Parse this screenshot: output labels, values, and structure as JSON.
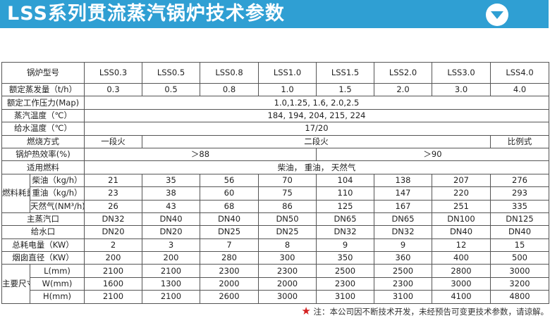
{
  "header": {
    "title": "LSS系列贯流蒸汽锅炉技术参数",
    "icon": "chevron-down-circle-icon",
    "color": "#2f9fd3"
  },
  "table": {
    "model_label": "锅炉型号",
    "models": [
      "LSS0.3",
      "LSS0.5",
      "LSS0.8",
      "LSS1.0",
      "LSS1.5",
      "LSS2.0",
      "LSS3.0",
      "LSS4.0"
    ],
    "rows": [
      {
        "label": "额定蒸发量（t/h）",
        "cells": [
          {
            "v": "0.3"
          },
          {
            "v": "0.5"
          },
          {
            "v": "0.8"
          },
          {
            "v": "1.0"
          },
          {
            "v": "1.5"
          },
          {
            "v": "2.0"
          },
          {
            "v": "3.0"
          },
          {
            "v": "4.0"
          }
        ]
      },
      {
        "label": "额定工作压力(Map)",
        "cells": [
          {
            "v": "1.0,1.25, 1.6, 2.0,2.5",
            "span": 8
          }
        ]
      },
      {
        "label": "蒸汽温度（℃）",
        "cells": [
          {
            "v": "184, 194, 204, 215, 224",
            "span": 8
          }
        ]
      },
      {
        "label": "给水温度（℃）",
        "cells": [
          {
            "v": "17/20",
            "span": 8
          }
        ]
      },
      {
        "label": "燃烧方式",
        "cells": [
          {
            "v": "一段火"
          },
          {
            "v": "二段火",
            "span": 6
          },
          {
            "v": "比例式"
          }
        ]
      },
      {
        "label": "锅炉热效率(%)",
        "cells": [
          {
            "v": "＞88",
            "span": 4
          },
          {
            "v": "＞90",
            "span": 4
          }
        ]
      },
      {
        "label": "适用燃料",
        "cells": [
          {
            "v": "柴油， 重油， 天然气",
            "span": 8
          }
        ]
      },
      {
        "group": "燃料耗量",
        "label": "柴油（kg/h）",
        "cells": [
          {
            "v": "21"
          },
          {
            "v": "35"
          },
          {
            "v": "56"
          },
          {
            "v": "70"
          },
          {
            "v": "104"
          },
          {
            "v": "138"
          },
          {
            "v": "207"
          },
          {
            "v": "276"
          }
        ]
      },
      {
        "group": "燃料耗量",
        "label": "重油（kg/h）",
        "cells": [
          {
            "v": "23"
          },
          {
            "v": "38"
          },
          {
            "v": "60"
          },
          {
            "v": "75"
          },
          {
            "v": "110"
          },
          {
            "v": "147"
          },
          {
            "v": "220"
          },
          {
            "v": "293"
          }
        ]
      },
      {
        "group": "燃料耗量",
        "label": "天然气(NM³/h)",
        "cells": [
          {
            "v": "26"
          },
          {
            "v": "43"
          },
          {
            "v": "68"
          },
          {
            "v": "86"
          },
          {
            "v": "125"
          },
          {
            "v": "167"
          },
          {
            "v": "251"
          },
          {
            "v": "335"
          }
        ]
      },
      {
        "label": "主蒸汽口",
        "cells": [
          {
            "v": "DN32"
          },
          {
            "v": "DN40"
          },
          {
            "v": "DN40"
          },
          {
            "v": "DN50"
          },
          {
            "v": "DN65"
          },
          {
            "v": "DN65"
          },
          {
            "v": "DN100"
          },
          {
            "v": "DN125"
          }
        ]
      },
      {
        "label": "给水口",
        "cells": [
          {
            "v": "DN20"
          },
          {
            "v": "DN20"
          },
          {
            "v": "DN25"
          },
          {
            "v": "DN25"
          },
          {
            "v": "DN32"
          },
          {
            "v": "DN32"
          },
          {
            "v": "DN40"
          },
          {
            "v": "DN40"
          }
        ]
      },
      {
        "label": "总耗电量（KW）",
        "cells": [
          {
            "v": "2"
          },
          {
            "v": "3"
          },
          {
            "v": "7"
          },
          {
            "v": "8"
          },
          {
            "v": "9"
          },
          {
            "v": "9"
          },
          {
            "v": "12"
          },
          {
            "v": "15"
          }
        ]
      },
      {
        "label": "烟囱直径（KW）",
        "cells": [
          {
            "v": "200"
          },
          {
            "v": "200"
          },
          {
            "v": "280"
          },
          {
            "v": "300"
          },
          {
            "v": "350"
          },
          {
            "v": "360"
          },
          {
            "v": "400"
          },
          {
            "v": "500"
          }
        ]
      },
      {
        "group": "主要尺寸",
        "label": "L(mm)",
        "cells": [
          {
            "v": "2100"
          },
          {
            "v": "2100"
          },
          {
            "v": "2300"
          },
          {
            "v": "2300"
          },
          {
            "v": "2500"
          },
          {
            "v": "2500"
          },
          {
            "v": "2800"
          },
          {
            "v": "3000"
          }
        ]
      },
      {
        "group": "主要尺寸",
        "label": "W(mm)",
        "cells": [
          {
            "v": "1600"
          },
          {
            "v": "1300"
          },
          {
            "v": "2000"
          },
          {
            "v": "2000"
          },
          {
            "v": "2300"
          },
          {
            "v": "2300"
          },
          {
            "v": "3000"
          },
          {
            "v": "3200"
          }
        ]
      },
      {
        "group": "主要尺寸",
        "label": "H(mm)",
        "cells": [
          {
            "v": "2100"
          },
          {
            "v": "2100"
          },
          {
            "v": "2600"
          },
          {
            "v": "3000"
          },
          {
            "v": "3100"
          },
          {
            "v": "3100"
          },
          {
            "v": "4100"
          },
          {
            "v": "4800"
          }
        ]
      }
    ]
  },
  "note": {
    "star": "★",
    "text": "注：本公司因不断技术开发，未经预告可变更技术参数，请谅解。",
    "star_color": "#d42020"
  }
}
